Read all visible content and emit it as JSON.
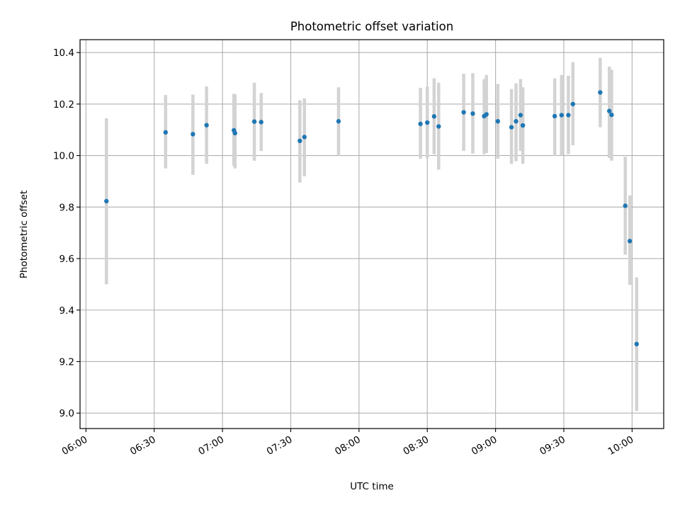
{
  "chart_data": {
    "type": "scatter",
    "title": "Photometric offset variation",
    "xlabel": "UTC time",
    "ylabel": "Photometric offset",
    "x_tick_labels": [
      "06:00",
      "06:30",
      "07:00",
      "07:30",
      "08:00",
      "08:30",
      "09:00",
      "09:30",
      "10:00"
    ],
    "x_ticks_minutes": [
      360,
      390,
      420,
      450,
      480,
      510,
      540,
      570,
      600
    ],
    "xlim_minutes": [
      357.4,
      613.9
    ],
    "y_tick_labels": [
      "9.0",
      "9.2",
      "9.4",
      "9.6",
      "9.8",
      "10.0",
      "10.2",
      "10.4"
    ],
    "y_ticks": [
      9.0,
      9.2,
      9.4,
      9.6,
      9.8,
      10.0,
      10.2,
      10.4
    ],
    "ylim": [
      8.94,
      10.45
    ],
    "grid": true,
    "marker_color": "#1f77b4",
    "errorbar_color": "#d3d3d3",
    "points": [
      {
        "t": "06:09",
        "y": 9.823,
        "lo": 9.5,
        "hi": 10.145
      },
      {
        "t": "06:35",
        "y": 10.09,
        "lo": 9.95,
        "hi": 10.235
      },
      {
        "t": "06:47",
        "y": 10.083,
        "lo": 9.925,
        "hi": 10.237
      },
      {
        "t": "06:53",
        "y": 10.118,
        "lo": 9.968,
        "hi": 10.268
      },
      {
        "t": "07:05",
        "y": 10.098,
        "lo": 9.96,
        "hi": 10.24
      },
      {
        "t": "07:05.5",
        "y": 10.087,
        "lo": 9.95,
        "hi": 10.237
      },
      {
        "t": "07:14",
        "y": 10.132,
        "lo": 9.98,
        "hi": 10.283
      },
      {
        "t": "07:17",
        "y": 10.13,
        "lo": 10.018,
        "hi": 10.243
      },
      {
        "t": "07:34",
        "y": 10.057,
        "lo": 9.895,
        "hi": 10.215
      },
      {
        "t": "07:36",
        "y": 10.072,
        "lo": 9.92,
        "hi": 10.222
      },
      {
        "t": "07:51",
        "y": 10.133,
        "lo": 10.0,
        "hi": 10.265
      },
      {
        "t": "08:27",
        "y": 10.123,
        "lo": 9.988,
        "hi": 10.263
      },
      {
        "t": "08:30",
        "y": 10.128,
        "lo": 9.99,
        "hi": 10.268
      },
      {
        "t": "08:33",
        "y": 10.152,
        "lo": 10.005,
        "hi": 10.3
      },
      {
        "t": "08:35",
        "y": 10.113,
        "lo": 9.945,
        "hi": 10.283
      },
      {
        "t": "08:46",
        "y": 10.168,
        "lo": 10.018,
        "hi": 10.318
      },
      {
        "t": "08:50",
        "y": 10.163,
        "lo": 10.008,
        "hi": 10.32
      },
      {
        "t": "08:55",
        "y": 10.153,
        "lo": 10.005,
        "hi": 10.297
      },
      {
        "t": "08:56",
        "y": 10.16,
        "lo": 10.01,
        "hi": 10.313
      },
      {
        "t": "09:01",
        "y": 10.133,
        "lo": 9.988,
        "hi": 10.278
      },
      {
        "t": "09:07",
        "y": 10.11,
        "lo": 9.968,
        "hi": 10.258
      },
      {
        "t": "09:09",
        "y": 10.133,
        "lo": 9.978,
        "hi": 10.28
      },
      {
        "t": "09:11",
        "y": 10.157,
        "lo": 10.018,
        "hi": 10.297
      },
      {
        "t": "09:12",
        "y": 10.117,
        "lo": 9.968,
        "hi": 10.265
      },
      {
        "t": "09:26",
        "y": 10.153,
        "lo": 10.0,
        "hi": 10.3
      },
      {
        "t": "09:29",
        "y": 10.157,
        "lo": 10.0,
        "hi": 10.313
      },
      {
        "t": "09:32",
        "y": 10.157,
        "lo": 10.005,
        "hi": 10.31
      },
      {
        "t": "09:34",
        "y": 10.2,
        "lo": 10.04,
        "hi": 10.363
      },
      {
        "t": "09:46",
        "y": 10.245,
        "lo": 10.11,
        "hi": 10.38
      },
      {
        "t": "09:50",
        "y": 10.173,
        "lo": 9.99,
        "hi": 10.345
      },
      {
        "t": "09:51",
        "y": 10.158,
        "lo": 9.98,
        "hi": 10.333
      },
      {
        "t": "09:57",
        "y": 9.805,
        "lo": 9.615,
        "hi": 9.995
      },
      {
        "t": "09:59",
        "y": 9.668,
        "lo": 9.498,
        "hi": 9.845
      },
      {
        "t": "10:02",
        "y": 9.268,
        "lo": 9.008,
        "hi": 9.527
      }
    ]
  }
}
